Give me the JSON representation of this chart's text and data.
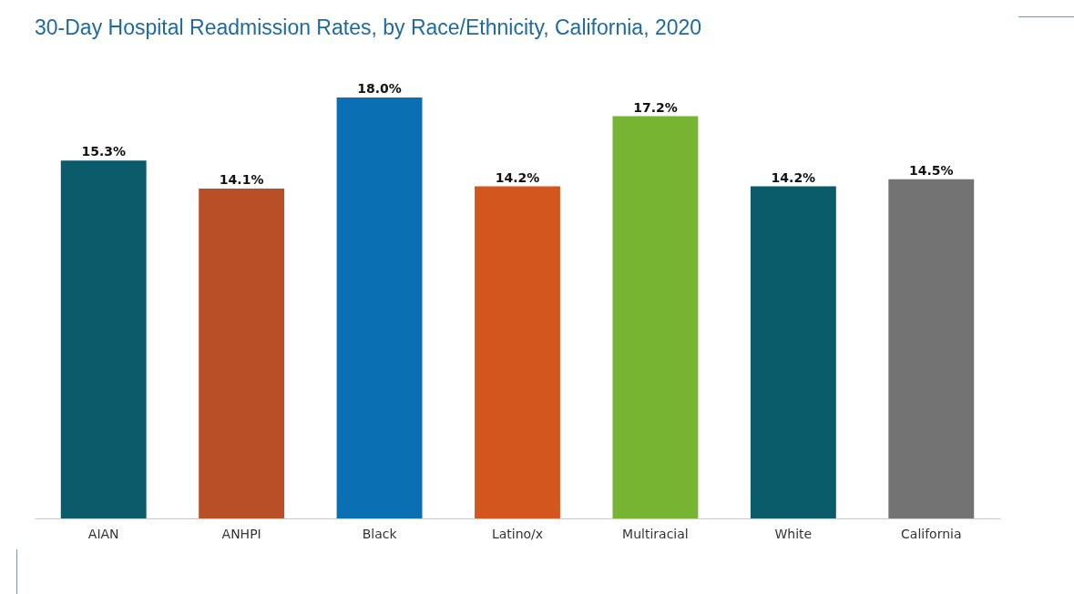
{
  "chart_data": {
    "type": "bar",
    "title": "30-Day Hospital Readmission Rates, by Race/Ethnicity, California, 2020",
    "categories": [
      "AIAN",
      "ANHPI",
      "Black",
      "Latino/x",
      "Multiracial",
      "White",
      "California"
    ],
    "values": [
      15.3,
      14.1,
      18.0,
      14.2,
      17.2,
      14.2,
      14.5
    ],
    "colors": [
      "#0b5b6a",
      "#b84f27",
      "#0b70b3",
      "#d4561f",
      "#76b431",
      "#0a5c6b",
      "#737373"
    ],
    "value_labels": [
      "15.3%",
      "14.1%",
      "18.0%",
      "14.2%",
      "17.2%",
      "14.2%",
      "14.5%"
    ],
    "grid": false
  }
}
